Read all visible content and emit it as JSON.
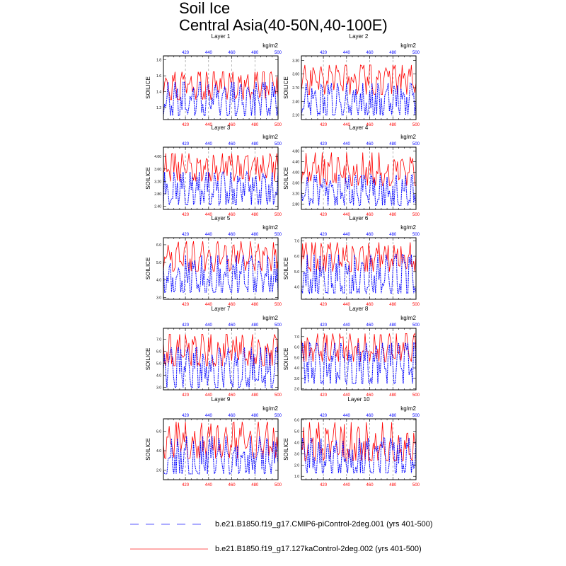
{
  "figure": {
    "title_line1": "Soil Ice",
    "title_line2": "Central Asia(40-50N,40-100E)"
  },
  "colors": {
    "piControl": "#0000ff",
    "ka127": "#ff0000"
  },
  "legend": [
    {
      "name": "b.e21.B1850.f19_g17.CMIP6-piControl-2deg.001 (yrs 401-500)",
      "color": "#0000ff",
      "style": "dashed"
    },
    {
      "name": "b.e21.B1850.f19_g17.127kaControl-2deg.002 (yrs 401-500)",
      "color": "#ff0000",
      "style": "solid"
    }
  ],
  "chart_data": [
    {
      "type": "line",
      "title": "Layer 1",
      "ylabel": "SOILICE",
      "units": "kg/m2",
      "xlim": [
        401,
        500
      ],
      "ylim": [
        1.05,
        1.85
      ],
      "xticks": [
        420,
        440,
        460,
        480,
        500
      ],
      "yticks": [
        1.2,
        1.4,
        1.6,
        1.8
      ],
      "yticklabels": [
        "1.2",
        "1.4",
        "1.6",
        "1.8"
      ],
      "ka_params": [
        1.3,
        1.65,
        1.48
      ],
      "pi_params": [
        1.1,
        1.52,
        1.3
      ],
      "seed": 11
    },
    {
      "type": "line",
      "title": "Layer 2",
      "ylabel": "SOILICE",
      "units": "kg/m2",
      "xlim": [
        401,
        500
      ],
      "ylim": [
        2.0,
        3.4
      ],
      "xticks": [
        420,
        440,
        460,
        480,
        500
      ],
      "yticks": [
        2.1,
        2.4,
        2.7,
        3.0,
        3.3
      ],
      "yticklabels": [
        "2.10",
        "2.40",
        "2.70",
        "3.00",
        "3.30"
      ],
      "ka_params": [
        2.55,
        3.2,
        2.9
      ],
      "pi_params": [
        2.1,
        2.8,
        2.4
      ],
      "seed": 23
    },
    {
      "type": "line",
      "title": "Layer 3",
      "ylabel": "SOILICE",
      "units": "kg/m2",
      "xlim": [
        401,
        500
      ],
      "ylim": [
        2.3,
        4.3
      ],
      "xticks": [
        420,
        440,
        460,
        480,
        500
      ],
      "yticks": [
        2.4,
        2.8,
        3.2,
        3.6,
        4.0
      ],
      "yticklabels": [
        "2.40",
        "2.80",
        "3.20",
        "3.60",
        "4.00"
      ],
      "ka_params": [
        3.2,
        4.1,
        3.65
      ],
      "pi_params": [
        2.45,
        3.5,
        2.95
      ],
      "seed": 37
    },
    {
      "type": "line",
      "title": "Layer 4",
      "ylabel": "SOILICE",
      "units": "kg/m2",
      "xlim": [
        401,
        500
      ],
      "ylim": [
        2.6,
        4.95
      ],
      "xticks": [
        420,
        440,
        460,
        480,
        500
      ],
      "yticks": [
        2.8,
        3.2,
        3.6,
        4.0,
        4.4,
        4.8
      ],
      "yticklabels": [
        "2.80",
        "3.20",
        "3.60",
        "4.00",
        "4.40",
        "4.80"
      ],
      "ka_params": [
        3.5,
        4.75,
        4.05
      ],
      "pi_params": [
        2.75,
        3.9,
        3.25
      ],
      "seed": 41
    },
    {
      "type": "line",
      "title": "Layer 5",
      "ylabel": "SOILICE",
      "units": "kg/m2",
      "xlim": [
        401,
        500
      ],
      "ylim": [
        2.9,
        6.4
      ],
      "xticks": [
        420,
        440,
        460,
        480,
        500
      ],
      "yticks": [
        3.0,
        4.0,
        5.0,
        6.0
      ],
      "yticklabels": [
        "3.0",
        "4.0",
        "5.0",
        "6.0"
      ],
      "ka_params": [
        4.5,
        6.2,
        5.25
      ],
      "pi_params": [
        3.3,
        5.4,
        4.1
      ],
      "seed": 53
    },
    {
      "type": "line",
      "title": "Layer 6",
      "ylabel": "SOILICE",
      "units": "kg/m2",
      "xlim": [
        401,
        500
      ],
      "ylim": [
        3.2,
        7.2
      ],
      "xticks": [
        420,
        440,
        460,
        480,
        500
      ],
      "yticks": [
        4.0,
        5.0,
        6.0,
        7.0
      ],
      "yticklabels": [
        "4.0",
        "5.0",
        "6.0",
        "7.0"
      ],
      "ka_params": [
        5.0,
        6.9,
        5.9
      ],
      "pi_params": [
        3.6,
        6.1,
        4.6
      ],
      "seed": 67
    },
    {
      "type": "line",
      "title": "Layer 7",
      "ylabel": "SOILICE",
      "units": "kg/m2",
      "xlim": [
        401,
        500
      ],
      "ylim": [
        2.8,
        7.9
      ],
      "xticks": [
        420,
        440,
        460,
        480,
        500
      ],
      "yticks": [
        3.0,
        4.0,
        5.0,
        6.0,
        7.0
      ],
      "yticklabels": [
        "3.0",
        "4.0",
        "5.0",
        "6.0",
        "7.0"
      ],
      "ka_params": [
        4.8,
        7.4,
        6.0
      ],
      "pi_params": [
        3.0,
        6.3,
        4.5
      ],
      "seed": 71
    },
    {
      "type": "line",
      "title": "Layer 8",
      "ylabel": "SOILICE",
      "units": "kg/m2",
      "xlim": [
        401,
        500
      ],
      "ylim": [
        1.9,
        7.8
      ],
      "xticks": [
        420,
        440,
        460,
        480,
        500
      ],
      "yticks": [
        2.0,
        3.0,
        4.0,
        5.0,
        6.0,
        7.0
      ],
      "yticklabels": [
        "2.0",
        "3.0",
        "4.0",
        "5.0",
        "6.0",
        "7.0"
      ],
      "ka_params": [
        4.6,
        7.3,
        5.8
      ],
      "pi_params": [
        2.5,
        6.4,
        4.3
      ],
      "seed": 83
    },
    {
      "type": "line",
      "title": "Layer 9",
      "ylabel": "SOILICE",
      "units": "kg/m2",
      "xlim": [
        401,
        500
      ],
      "ylim": [
        1.0,
        7.3
      ],
      "xticks": [
        420,
        440,
        460,
        480,
        500
      ],
      "yticks": [
        2.0,
        4.0,
        6.0
      ],
      "yticklabels": [
        "2.0",
        "4.0",
        "6.0"
      ],
      "ka_params": [
        3.2,
        7.0,
        4.8
      ],
      "pi_params": [
        1.6,
        5.5,
        3.2
      ],
      "seed": 97
    },
    {
      "type": "line",
      "title": "Layer 10",
      "ylabel": "SOILICE",
      "units": "kg/m2",
      "xlim": [
        401,
        500
      ],
      "ylim": [
        0.7,
        6.1
      ],
      "xticks": [
        420,
        440,
        460,
        480,
        500
      ],
      "yticks": [
        1.0,
        2.0,
        3.0,
        4.0,
        5.0,
        6.0
      ],
      "yticklabels": [
        "1.0",
        "2.0",
        "3.0",
        "4.0",
        "5.0",
        "6.0"
      ],
      "ka_params": [
        2.4,
        5.8,
        3.6
      ],
      "pi_params": [
        1.3,
        4.4,
        2.5
      ],
      "seed": 101
    }
  ]
}
